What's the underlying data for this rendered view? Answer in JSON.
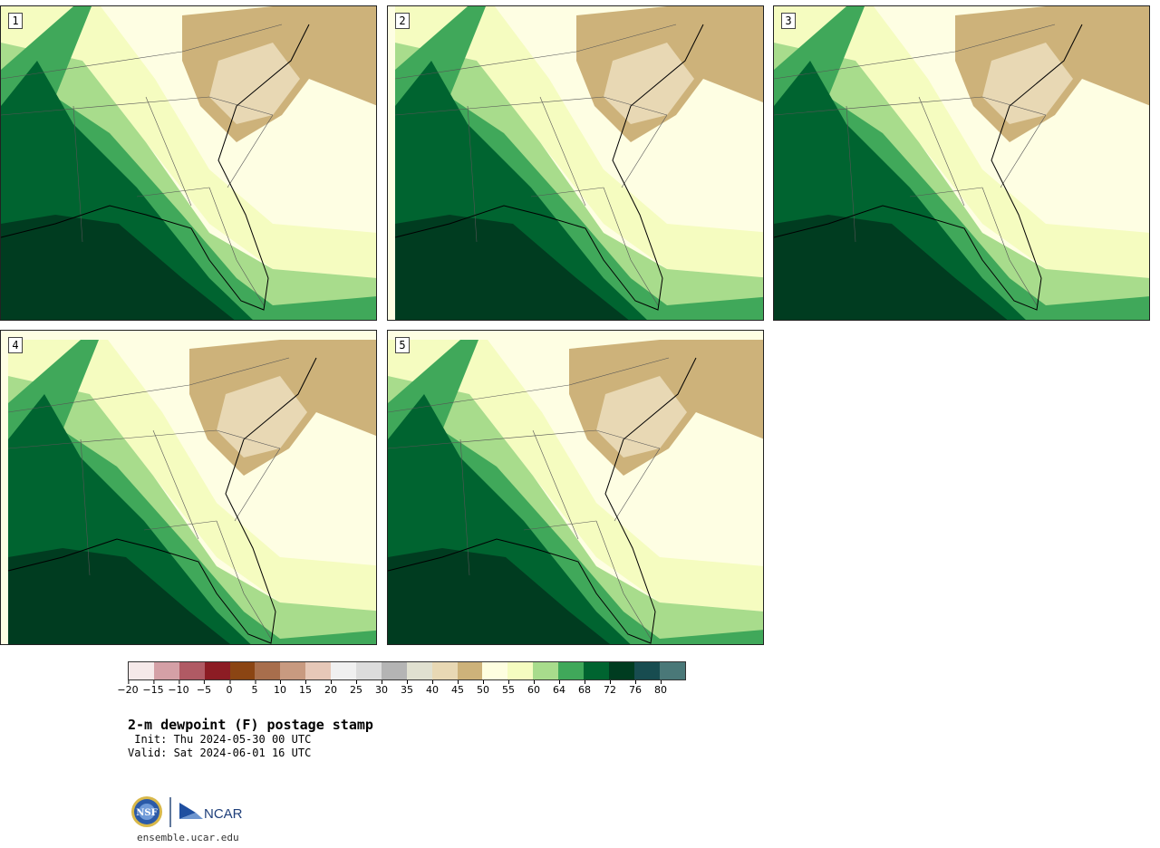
{
  "panels": [
    {
      "label": "1"
    },
    {
      "label": "2"
    },
    {
      "label": "3"
    },
    {
      "label": "4"
    },
    {
      "label": "5"
    }
  ],
  "legend": {
    "colors": [
      "#f5e9e9",
      "#d4a0a6",
      "#b05a64",
      "#8c1c24",
      "#8b4513",
      "#a86e4c",
      "#c89a80",
      "#e6c8b8",
      "#f0f0f0",
      "#dcdcdc",
      "#b4b4b4",
      "#e0e0d0",
      "#e8d8b4",
      "#cdb27a",
      "#fefee0",
      "#f5fcc0",
      "#a8dc8c",
      "#40a85a",
      "#006430",
      "#003c20",
      "#184c50",
      "#4a7878"
    ],
    "tick_labels": [
      "−20",
      "−15",
      "−10",
      "−5",
      "0",
      "5",
      "10",
      "15",
      "20",
      "25",
      "30",
      "35",
      "40",
      "45",
      "50",
      "55",
      "60",
      "64",
      "68",
      "72",
      "76",
      "80"
    ]
  },
  "title": "2-m dewpoint (F) postage stamp",
  "init_text": " Init: Thu 2024-05-30 00 UTC",
  "valid_text": "Valid: Sat 2024-06-01 16 UTC",
  "logo_text": "NCAR",
  "nsf_text": "NSF",
  "site": "ensemble.ucar.edu"
}
